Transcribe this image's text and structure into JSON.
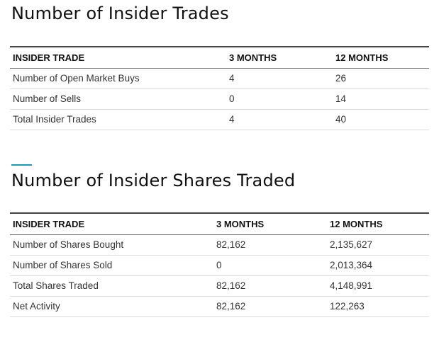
{
  "insider_trades": {
    "title": "Number of Insider Trades",
    "headers": [
      "INSIDER TRADE",
      "3 MONTHS",
      "12 MONTHS"
    ],
    "rows": [
      [
        "Number of Open Market Buys",
        "4",
        "26"
      ],
      [
        "Number of Sells",
        "0",
        "14"
      ],
      [
        "Total Insider Trades",
        "4",
        "40"
      ]
    ]
  },
  "shares_traded": {
    "title": "Number of Insider Shares Traded",
    "headers": [
      "INSIDER TRADE",
      "3 MONTHS",
      "12 MONTHS"
    ],
    "rows": [
      [
        "Number of Shares Bought",
        "82,162",
        "2,135,627"
      ],
      [
        "Number of Shares Sold",
        "0",
        "2,013,364"
      ],
      [
        "Total Shares Traded",
        "82,162",
        "4,148,991"
      ],
      [
        "Net Activity",
        "82,162",
        "122,263"
      ]
    ]
  },
  "colors": {
    "accent": "#1a9bb8",
    "header_rule": "#444444",
    "row_divider": "#dcdcdc"
  }
}
